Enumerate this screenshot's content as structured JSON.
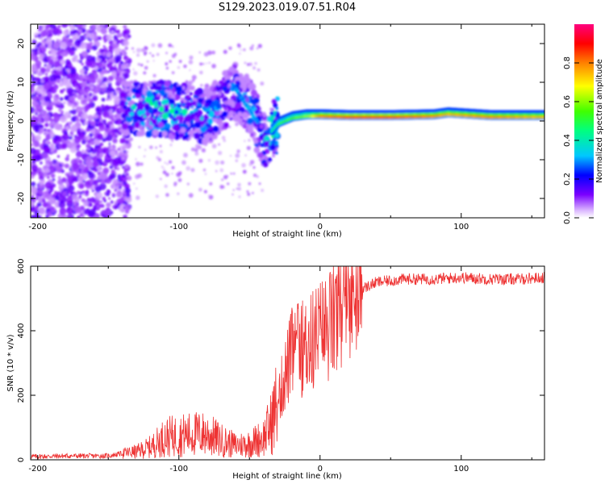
{
  "title": "S129.2023.019.07.51.R04",
  "chart_data": [
    {
      "type": "heatmap",
      "xlabel": "Height of straight line (km)",
      "ylabel": "Frequency (Hz)",
      "xlim": [
        -205,
        159
      ],
      "ylim": [
        -25,
        25
      ],
      "xticks": [
        -200,
        -100,
        0,
        100
      ],
      "yticks": [
        -20,
        -10,
        0,
        10,
        20
      ],
      "colorbar": {
        "label": "Normalized spectral amplitude",
        "range": [
          0,
          1
        ],
        "ticks": [
          "0.0",
          "0.2",
          "0.4",
          "0.6",
          "0.8"
        ],
        "tick_values": [
          0,
          0.2,
          0.4,
          0.6,
          0.8
        ]
      },
      "ridge": [
        {
          "x": -140,
          "freq": 3,
          "amp": 0.3
        },
        {
          "x": -120,
          "freq": 3.5,
          "amp": 0.45
        },
        {
          "x": -100,
          "freq": 2.5,
          "amp": 0.4
        },
        {
          "x": -80,
          "freq": 1,
          "amp": 0.35
        },
        {
          "x": -60,
          "freq": 8,
          "amp": 0.3
        },
        {
          "x": -50,
          "freq": 4,
          "amp": 0.35
        },
        {
          "x": -40,
          "freq": -5,
          "amp": 0.4
        },
        {
          "x": -30,
          "freq": -1,
          "amp": 0.5
        },
        {
          "x": -20,
          "freq": 0.5,
          "amp": 0.55
        },
        {
          "x": -10,
          "freq": 1,
          "amp": 0.6
        },
        {
          "x": 0,
          "freq": 1,
          "amp": 0.8
        },
        {
          "x": 20,
          "freq": 0.8,
          "amp": 0.85
        },
        {
          "x": 50,
          "freq": 0.8,
          "amp": 0.85
        },
        {
          "x": 80,
          "freq": 1,
          "amp": 0.8
        },
        {
          "x": 90,
          "freq": 1.5,
          "amp": 0.75
        },
        {
          "x": 120,
          "freq": 0.8,
          "amp": 0.8
        },
        {
          "x": 150,
          "freq": 0.8,
          "amp": 0.75
        }
      ]
    },
    {
      "type": "line",
      "xlabel": "Height of straight line (km)",
      "ylabel": "SNR (10 * v/v)",
      "xlim": [
        -205,
        159
      ],
      "ylim": [
        0,
        600
      ],
      "xticks": [
        -200,
        -100,
        0,
        100
      ],
      "yticks": [
        0,
        200,
        400,
        600
      ],
      "series": [
        {
          "name": "SNR",
          "color": "#ee3333",
          "x": [
            -205,
            -180,
            -150,
            -140,
            -130,
            -120,
            -110,
            -100,
            -90,
            -80,
            -70,
            -60,
            -50,
            -40,
            -35,
            -30,
            -25,
            -20,
            -15,
            -10,
            -5,
            0,
            10,
            20,
            30,
            40,
            50,
            60,
            80,
            100,
            120,
            140,
            159
          ],
          "y": [
            10,
            12,
            12,
            20,
            25,
            40,
            70,
            75,
            80,
            80,
            60,
            45,
            50,
            70,
            110,
            180,
            260,
            330,
            340,
            350,
            370,
            390,
            430,
            490,
            530,
            550,
            555,
            560,
            560,
            565,
            560,
            560,
            565
          ]
        }
      ]
    }
  ]
}
